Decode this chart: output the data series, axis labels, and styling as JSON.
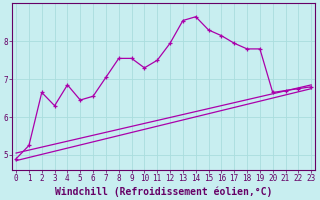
{
  "xlabel": "Windchill (Refroidissement éolien,°C)",
  "bg_color": "#c8eef0",
  "line_color": "#aa00aa",
  "grid_color": "#aadddd",
  "axis_color": "#660066",
  "ylim": [
    4.6,
    9.0
  ],
  "xlim": [
    -0.3,
    23.3
  ],
  "yticks": [
    5,
    6,
    7,
    8
  ],
  "xticks": [
    0,
    1,
    2,
    3,
    4,
    5,
    6,
    7,
    8,
    9,
    10,
    11,
    12,
    13,
    14,
    15,
    16,
    17,
    18,
    19,
    20,
    21,
    22,
    23
  ],
  "line1_x": [
    0,
    1,
    2,
    3,
    4,
    5,
    6,
    7,
    8,
    9,
    10,
    11,
    12,
    13,
    14,
    15,
    16,
    17,
    18,
    19,
    20,
    21,
    22,
    23
  ],
  "line1_y": [
    4.9,
    5.25,
    6.65,
    6.3,
    6.85,
    6.45,
    6.55,
    7.05,
    7.55,
    7.55,
    7.3,
    7.5,
    7.95,
    8.55,
    8.65,
    8.3,
    8.15,
    7.95,
    7.8,
    7.8,
    6.65,
    6.7,
    6.75,
    6.8
  ],
  "line2_x": [
    0,
    23
  ],
  "line2_y": [
    5.05,
    6.85
  ],
  "line3_x": [
    0,
    23
  ],
  "line3_y": [
    4.85,
    6.75
  ],
  "font_family": "monospace",
  "tick_fontsize": 5.5,
  "xlabel_fontsize": 7.0
}
